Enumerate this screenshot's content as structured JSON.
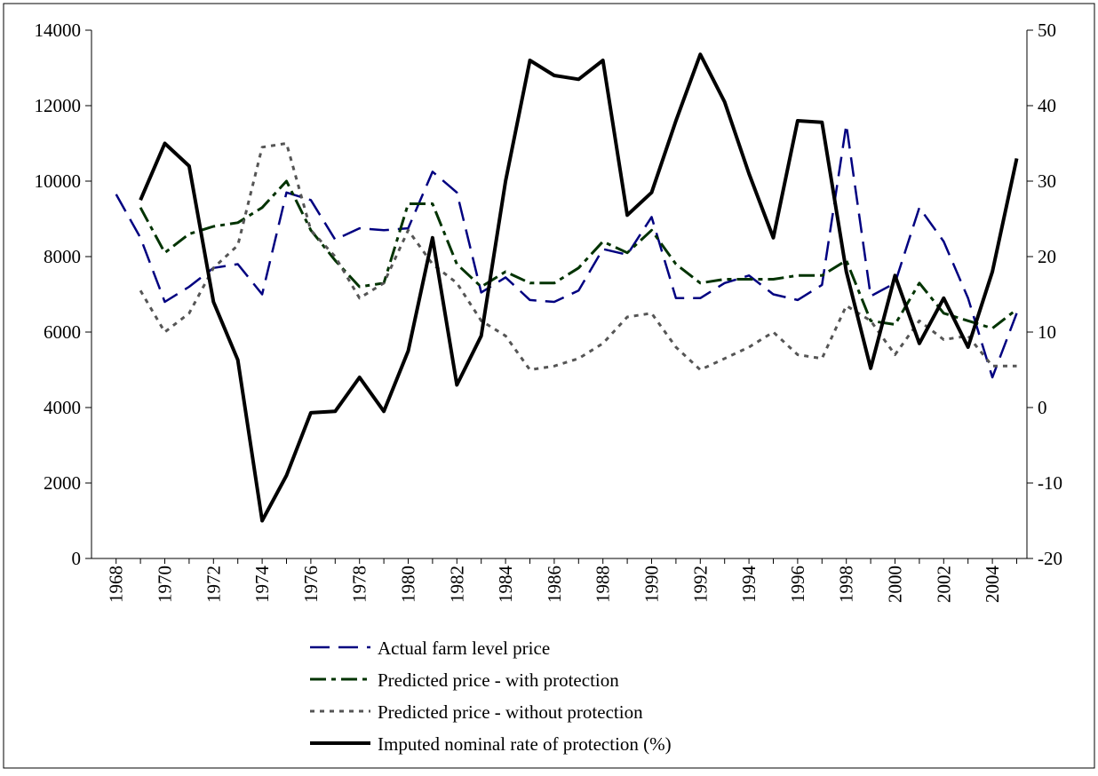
{
  "chart_data": {
    "type": "line",
    "categories": [
      "1968",
      null,
      "1970",
      null,
      "1972",
      null,
      "1974",
      null,
      "1976",
      null,
      "1978",
      null,
      "1980",
      null,
      "1982",
      null,
      "1984",
      null,
      "1986",
      null,
      "1988",
      null,
      "1990",
      null,
      "1992",
      null,
      "1994",
      null,
      "1996",
      null,
      "1998",
      null,
      "2000",
      null,
      "2002",
      null,
      "2004",
      null
    ],
    "ylim": [
      0,
      14000
    ],
    "yticks": [
      0,
      2000,
      4000,
      6000,
      8000,
      10000,
      12000,
      14000
    ],
    "y2lim": [
      -20,
      50
    ],
    "y2ticks": [
      -20,
      -10,
      0,
      10,
      20,
      30,
      40,
      50
    ],
    "series": [
      {
        "name": "Actual farm level price",
        "color": "#000080",
        "dash": "22,10",
        "width": 2.5,
        "values": [
          9650,
          8500,
          6800,
          7200,
          7700,
          7800,
          7000,
          9700,
          9500,
          8450,
          8750,
          8700,
          8750,
          10250,
          9700,
          7050,
          7450,
          6850,
          6800,
          7100,
          8200,
          8050,
          9050,
          6900,
          6900,
          7300,
          7500,
          7000,
          6850,
          7250,
          11500,
          6950,
          7300,
          9300,
          8400,
          6900,
          4800,
          6500
        ]
      },
      {
        "name": "Predicted price - with protection",
        "color": "#003300",
        "dash": "18,6,5,6",
        "width": 3,
        "values": [
          null,
          9300,
          8100,
          8600,
          8800,
          8900,
          9300,
          10000,
          8700,
          7900,
          7200,
          7300,
          9400,
          9400,
          7800,
          7200,
          7600,
          7300,
          7300,
          7700,
          8400,
          8100,
          8700,
          7800,
          7300,
          7400,
          7400,
          7400,
          7500,
          7500,
          7900,
          6300,
          6200,
          7300,
          6500,
          6300,
          6100,
          6600
        ]
      },
      {
        "name": "Predicted price - without protection",
        "color": "#555555",
        "dash": "5,6",
        "width": 3,
        "values": [
          null,
          7100,
          6000,
          6500,
          7700,
          8300,
          10900,
          11000,
          8700,
          8000,
          6900,
          7300,
          8700,
          7800,
          7300,
          6300,
          5900,
          5000,
          5100,
          5300,
          5700,
          6400,
          6500,
          5600,
          5000,
          5300,
          5600,
          6000,
          5400,
          5300,
          6700,
          6300,
          5400,
          6300,
          5800,
          5900,
          5100,
          5100
        ]
      },
      {
        "name": "Imputed nominal rate of protection (%)",
        "color": "#000000",
        "dash": "",
        "width": 4,
        "axis": "y2",
        "values": [
          null,
          27.5,
          35,
          32,
          14,
          6.3,
          -15,
          -9,
          -0.7,
          -0.5,
          4,
          -0.5,
          7.5,
          22.5,
          3,
          9.5,
          30,
          46,
          44,
          43.5,
          46,
          25.5,
          28.5,
          38,
          46.8,
          40.5,
          31,
          22.5,
          38,
          37.8,
          18,
          5.2,
          17.5,
          8.5,
          14.5,
          8,
          18,
          33
        ]
      }
    ]
  }
}
